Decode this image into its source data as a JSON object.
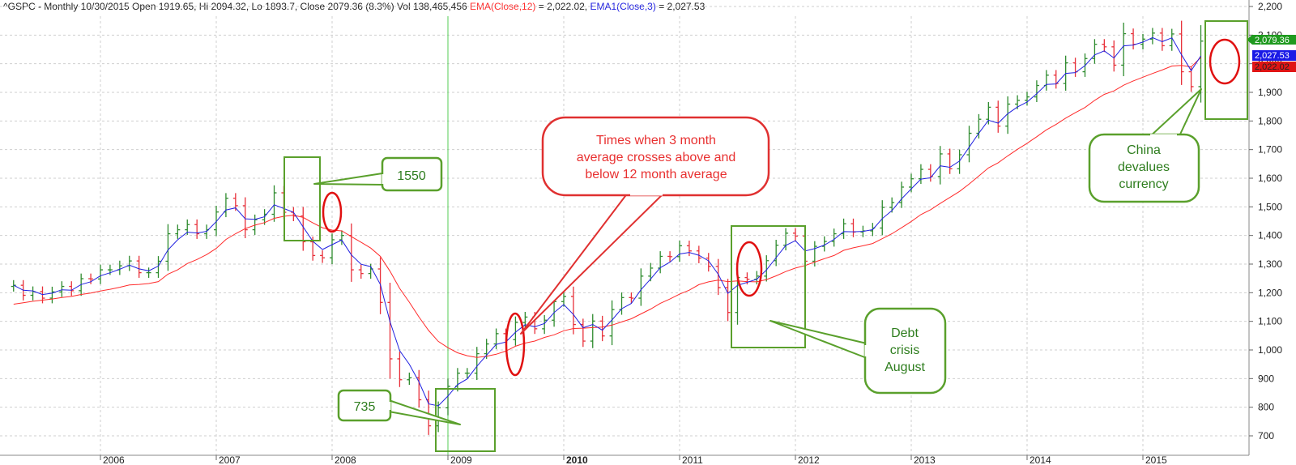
{
  "chart_data": {
    "type": "ohlc",
    "header": {
      "symbol_info": "^GSPC - Monthly 10/30/2015 Open 1919.65, Hi 2094.32, Lo 1893.7, Close 2079.36 (8.3%) Vol 138,465,456",
      "ema12_label": "EMA(Close,12)",
      "ema12_value": " = 2,022.02, ",
      "ema3_label": "EMA1(Close,3)",
      "ema3_value": " = 2,027.53"
    },
    "y_axis": {
      "min": 640,
      "max": 2210,
      "ticks": [
        700,
        800,
        900,
        1000,
        1100,
        1200,
        1300,
        1400,
        1500,
        1600,
        1700,
        1800,
        1900,
        2000,
        2100,
        2200
      ],
      "tick_labels": [
        "700",
        "800",
        "900",
        "1,000",
        "1,100",
        "1,200",
        "1,300",
        "1,400",
        "1,500",
        "1,600",
        "1,700",
        "1,800",
        "1,900",
        "2,000",
        "2,100",
        "2,200"
      ]
    },
    "x_axis": {
      "start_year": 2005.0,
      "years": [
        "2006",
        "2007",
        "2008",
        "2009",
        "2010",
        "2011",
        "2012",
        "2013",
        "2014",
        "2015"
      ],
      "bold_year": "2010"
    },
    "last_values": {
      "close": "2,079.36",
      "ema3": "2,027.53",
      "ema12": "2,022.02"
    },
    "colors": {
      "up_bar": "#2e8b2e",
      "down_bar": "#e8303a",
      "ema12": "#ff2b2b",
      "ema3": "#2020e0",
      "annotation_box": "#5aa02c",
      "highlight_circle": "#e01010",
      "bubble_red_text": "#e83030",
      "bubble_green_text": "#2e7d1e"
    },
    "closes": [
      1226,
      1191,
      1204,
      1181,
      1203,
      1222,
      1207,
      1249,
      1248,
      1280,
      1280,
      1294,
      1311,
      1270,
      1270,
      1310,
      1406,
      1420,
      1438,
      1406,
      1420,
      1482,
      1530,
      1504,
      1420,
      1455,
      1474,
      1549,
      1481,
      1468,
      1378,
      1330,
      1322,
      1385,
      1400,
      1280,
      1267,
      1283,
      1166,
      969,
      896,
      903,
      826,
      735,
      798,
      873,
      919,
      919,
      987,
      1021,
      1057,
      1036,
      1096,
      1115,
      1074,
      1104,
      1169,
      1187,
      1089,
      1031,
      1101,
      1049,
      1141,
      1183,
      1181,
      1258,
      1286,
      1327,
      1326,
      1364,
      1346,
      1321,
      1292,
      1218,
      1131,
      1253,
      1247,
      1258,
      1312,
      1366,
      1408,
      1398,
      1310,
      1362,
      1379,
      1406,
      1441,
      1412,
      1416,
      1426,
      1498,
      1515,
      1569,
      1598,
      1631,
      1606,
      1685,
      1633,
      1682,
      1757,
      1806,
      1848,
      1782,
      1859,
      1872,
      1884,
      1924,
      1960,
      1931,
      2003,
      1972,
      2018,
      2068,
      2059,
      1995,
      2105,
      2068,
      2086,
      2107,
      2063,
      2104,
      1972,
      1920,
      2079
    ],
    "ema12": [
      1160,
      1165,
      1170,
      1174,
      1178,
      1183,
      1187,
      1194,
      1199,
      1206,
      1212,
      1219,
      1227,
      1229,
      1232,
      1239,
      1265,
      1280,
      1302,
      1316,
      1333,
      1355,
      1386,
      1406,
      1424,
      1436,
      1445,
      1460,
      1467,
      1471,
      1463,
      1444,
      1427,
      1419,
      1416,
      1396,
      1376,
      1356,
      1327,
      1275,
      1215,
      1167,
      1115,
      1068,
      1030,
      1008,
      990,
      980,
      974,
      978,
      985,
      996,
      1013,
      1024,
      1031,
      1044,
      1053,
      1067,
      1075,
      1076,
      1078,
      1080,
      1087,
      1098,
      1109,
      1126,
      1143,
      1163,
      1178,
      1195,
      1209,
      1228,
      1238,
      1244,
      1239,
      1241,
      1239,
      1238,
      1246,
      1259,
      1274,
      1286,
      1295,
      1307,
      1319,
      1330,
      1348,
      1357,
      1364,
      1372,
      1389,
      1406,
      1427,
      1449,
      1473,
      1490,
      1512,
      1533,
      1554,
      1580,
      1608,
      1636,
      1654,
      1678,
      1701,
      1722,
      1745,
      1769,
      1788,
      1810,
      1829,
      1847,
      1872,
      1893,
      1905,
      1925,
      1940,
      1953,
      1966,
      1978,
      1992,
      1994,
      1989,
      2022
    ]
  },
  "annotations": {
    "label_1550": "1550",
    "label_735": "735",
    "crosses_line1": "Times when 3 month",
    "crosses_line2": "average crosses above and",
    "crosses_line3": "below 12 month average",
    "debt_line1": "Debt",
    "debt_line2": "crisis",
    "debt_line3": "August",
    "china_line1": "China",
    "china_line2": "devalues",
    "china_line3": "currency"
  }
}
